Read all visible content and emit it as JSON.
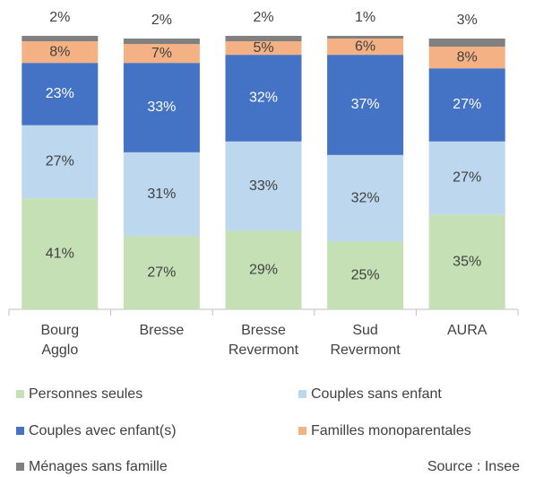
{
  "chart_data": {
    "type": "stacked_bar",
    "categories": [
      "Bourg Agglo",
      "Bresse",
      "Bresse Revermont",
      "Sud Revermont",
      "AURA"
    ],
    "series": [
      {
        "name": "Personnes seules",
        "color": "#c5e0b4",
        "values": [
          41,
          27,
          29,
          25,
          35
        ],
        "value_labels": [
          "41%",
          "27%",
          "29%",
          "25%",
          "35%"
        ]
      },
      {
        "name": "Couples sans enfant",
        "color": "#bdd7ee",
        "values": [
          27,
          31,
          33,
          32,
          27
        ],
        "value_labels": [
          "27%",
          "31%",
          "33%",
          "32%",
          "27%"
        ]
      },
      {
        "name": "Couples avec enfant(s)",
        "color": "#4472c4",
        "values": [
          23,
          33,
          32,
          37,
          27
        ],
        "value_labels": [
          "23%",
          "33%",
          "32%",
          "37%",
          "27%"
        ]
      },
      {
        "name": "Familles monoparentales",
        "color": "#f4b183",
        "values": [
          8,
          7,
          5,
          6,
          8
        ],
        "value_labels": [
          "8%",
          "7%",
          "5%",
          "6%",
          "8%"
        ]
      },
      {
        "name": "Ménages sans famille",
        "color": "#808080",
        "values": [
          2,
          2,
          2,
          1,
          3
        ],
        "value_labels": [
          "2%",
          "2%",
          "2%",
          "1%",
          "3%"
        ]
      }
    ],
    "source": "Source : Insee"
  }
}
